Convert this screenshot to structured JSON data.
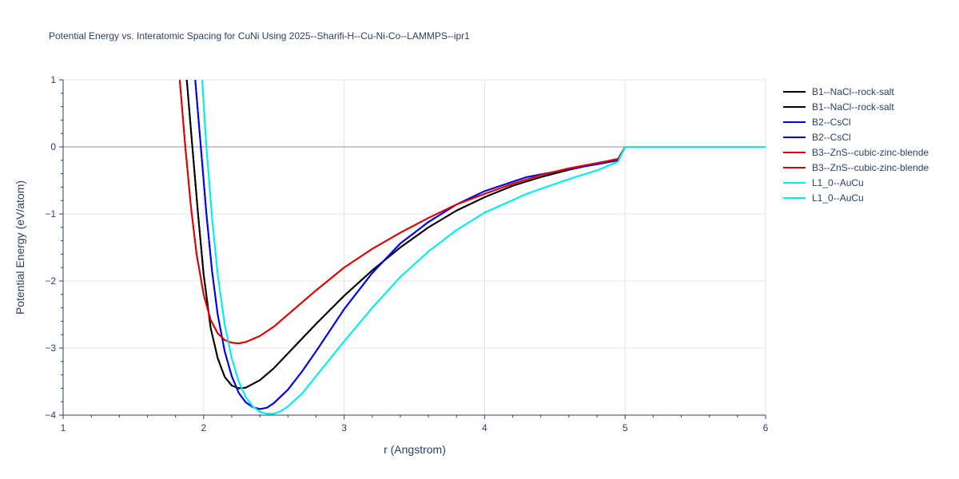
{
  "chart_data": {
    "type": "line",
    "title": "Potential Energy vs. Interatomic Spacing for CuNi Using 2025--Sharifi-H--Cu-Ni-Co--LAMMPS--ipr1",
    "xlabel": "r (Angstrom)",
    "ylabel": "Potential Energy (eV/atom)",
    "xlim": [
      1,
      6
    ],
    "ylim": [
      -4,
      1
    ],
    "x_ticks": [
      1,
      2,
      3,
      4,
      5,
      6
    ],
    "x_tick_labels": [
      "1",
      "2",
      "3",
      "4",
      "5",
      "6"
    ],
    "y_ticks": [
      1,
      0,
      -1,
      -2,
      -3,
      -4
    ],
    "y_tick_labels": [
      "1",
      "0",
      "−1",
      "−2",
      "−3",
      "−4"
    ],
    "grid": true,
    "legend_position": "right",
    "series": [
      {
        "name": "B1--NaCl--rock-salt",
        "color": "#000000",
        "x": [
          1.88,
          1.92,
          1.96,
          2.0,
          2.05,
          2.1,
          2.15,
          2.2,
          2.25,
          2.3,
          2.4,
          2.5,
          2.6,
          2.8,
          3.0,
          3.2,
          3.4,
          3.6,
          3.8,
          4.0,
          4.2,
          4.4,
          4.6,
          4.8,
          4.95,
          5.0,
          6.0
        ],
        "y": [
          1.0,
          0.0,
          -1.0,
          -1.9,
          -2.7,
          -3.15,
          -3.43,
          -3.56,
          -3.6,
          -3.59,
          -3.48,
          -3.3,
          -3.08,
          -2.64,
          -2.22,
          -1.84,
          -1.5,
          -1.2,
          -0.95,
          -0.75,
          -0.58,
          -0.45,
          -0.34,
          -0.25,
          -0.18,
          0.0,
          0.0
        ]
      },
      {
        "name": "B1--NaCl--rock-salt",
        "color": "#000000",
        "x": [
          1.88,
          1.92,
          1.96,
          2.0,
          2.05,
          2.1,
          2.15,
          2.2,
          2.25,
          2.3,
          2.4,
          2.5,
          2.6,
          2.8,
          3.0,
          3.2,
          3.4,
          3.6,
          3.8,
          4.0,
          4.2,
          4.4,
          4.6,
          4.8,
          4.95,
          5.0,
          6.0
        ],
        "y": [
          1.0,
          0.0,
          -1.0,
          -1.9,
          -2.7,
          -3.15,
          -3.43,
          -3.56,
          -3.6,
          -3.59,
          -3.48,
          -3.3,
          -3.08,
          -2.64,
          -2.22,
          -1.84,
          -1.5,
          -1.2,
          -0.95,
          -0.75,
          -0.58,
          -0.45,
          -0.34,
          -0.25,
          -0.18,
          0.0,
          0.0
        ]
      },
      {
        "name": "B2--CsCl",
        "color": "#0000ee",
        "x": [
          1.94,
          1.98,
          2.02,
          2.06,
          2.1,
          2.15,
          2.2,
          2.25,
          2.3,
          2.35,
          2.4,
          2.45,
          2.5,
          2.6,
          2.7,
          2.8,
          3.0,
          3.2,
          3.4,
          3.6,
          3.8,
          4.0,
          4.3,
          4.6,
          4.8,
          4.95,
          5.0,
          6.0
        ],
        "y": [
          1.0,
          0.0,
          -1.0,
          -1.85,
          -2.5,
          -3.05,
          -3.42,
          -3.67,
          -3.81,
          -3.88,
          -3.91,
          -3.89,
          -3.82,
          -3.62,
          -3.35,
          -3.05,
          -2.42,
          -1.88,
          -1.44,
          -1.12,
          -0.86,
          -0.66,
          -0.45,
          -0.33,
          -0.26,
          -0.2,
          0.0,
          0.0
        ]
      },
      {
        "name": "B2--CsCl",
        "color": "#0000ee",
        "x": [
          1.94,
          1.98,
          2.02,
          2.06,
          2.1,
          2.15,
          2.2,
          2.25,
          2.3,
          2.35,
          2.4,
          2.45,
          2.5,
          2.6,
          2.7,
          2.8,
          3.0,
          3.2,
          3.4,
          3.6,
          3.8,
          4.0,
          4.3,
          4.6,
          4.8,
          4.95,
          5.0,
          6.0
        ],
        "y": [
          1.0,
          0.0,
          -1.0,
          -1.85,
          -2.5,
          -3.05,
          -3.42,
          -3.67,
          -3.81,
          -3.88,
          -3.91,
          -3.89,
          -3.82,
          -3.62,
          -3.35,
          -3.05,
          -2.42,
          -1.88,
          -1.44,
          -1.12,
          -0.86,
          -0.66,
          -0.45,
          -0.33,
          -0.26,
          -0.2,
          0.0,
          0.0
        ]
      },
      {
        "name": "B3--ZnS--cubic-zinc-blende",
        "color": "#e00000",
        "x": [
          1.83,
          1.87,
          1.91,
          1.95,
          2.0,
          2.05,
          2.1,
          2.15,
          2.2,
          2.25,
          2.3,
          2.4,
          2.5,
          2.6,
          2.8,
          3.0,
          3.2,
          3.4,
          3.6,
          3.8,
          4.0,
          4.2,
          4.4,
          4.6,
          4.8,
          4.95,
          5.0,
          6.0
        ],
        "y": [
          1.0,
          0.0,
          -0.9,
          -1.6,
          -2.2,
          -2.58,
          -2.78,
          -2.88,
          -2.92,
          -2.93,
          -2.91,
          -2.82,
          -2.68,
          -2.5,
          -2.14,
          -1.8,
          -1.52,
          -1.28,
          -1.06,
          -0.86,
          -0.7,
          -0.55,
          -0.42,
          -0.32,
          -0.24,
          -0.18,
          0.0,
          0.0
        ]
      },
      {
        "name": "B3--ZnS--cubic-zinc-blende",
        "color": "#e00000",
        "x": [
          1.83,
          1.87,
          1.91,
          1.95,
          2.0,
          2.05,
          2.1,
          2.15,
          2.2,
          2.25,
          2.3,
          2.4,
          2.5,
          2.6,
          2.8,
          3.0,
          3.2,
          3.4,
          3.6,
          3.8,
          4.0,
          4.2,
          4.4,
          4.6,
          4.8,
          4.95,
          5.0,
          6.0
        ],
        "y": [
          1.0,
          0.0,
          -0.9,
          -1.6,
          -2.2,
          -2.58,
          -2.78,
          -2.88,
          -2.92,
          -2.93,
          -2.91,
          -2.82,
          -2.68,
          -2.5,
          -2.14,
          -1.8,
          -1.52,
          -1.28,
          -1.06,
          -0.86,
          -0.7,
          -0.55,
          -0.42,
          -0.32,
          -0.24,
          -0.18,
          0.0,
          0.0
        ]
      },
      {
        "name": "L1_0--AuCu",
        "color": "#00eeee",
        "x": [
          1.99,
          2.02,
          2.06,
          2.1,
          2.15,
          2.2,
          2.25,
          2.3,
          2.35,
          2.4,
          2.45,
          2.5,
          2.55,
          2.6,
          2.7,
          2.8,
          3.0,
          3.2,
          3.4,
          3.6,
          3.8,
          4.0,
          4.3,
          4.6,
          4.8,
          4.95,
          5.0,
          6.0
        ],
        "y": [
          1.0,
          0.0,
          -1.05,
          -1.9,
          -2.65,
          -3.15,
          -3.5,
          -3.73,
          -3.87,
          -3.95,
          -3.98,
          -3.98,
          -3.94,
          -3.87,
          -3.68,
          -3.42,
          -2.9,
          -2.4,
          -1.94,
          -1.56,
          -1.24,
          -0.98,
          -0.7,
          -0.48,
          -0.35,
          -0.22,
          0.0,
          0.0
        ]
      },
      {
        "name": "L1_0--AuCu",
        "color": "#00eeee",
        "x": [
          1.99,
          2.02,
          2.06,
          2.1,
          2.15,
          2.2,
          2.25,
          2.3,
          2.35,
          2.4,
          2.45,
          2.5,
          2.55,
          2.6,
          2.7,
          2.8,
          3.0,
          3.2,
          3.4,
          3.6,
          3.8,
          4.0,
          4.3,
          4.6,
          4.8,
          4.95,
          5.0,
          6.0
        ],
        "y": [
          1.0,
          0.0,
          -1.05,
          -1.9,
          -2.65,
          -3.15,
          -3.5,
          -3.73,
          -3.87,
          -3.95,
          -3.98,
          -3.98,
          -3.94,
          -3.87,
          -3.68,
          -3.42,
          -2.9,
          -2.4,
          -1.94,
          -1.56,
          -1.24,
          -0.98,
          -0.7,
          -0.48,
          -0.35,
          -0.22,
          0.0,
          0.0
        ]
      }
    ]
  }
}
